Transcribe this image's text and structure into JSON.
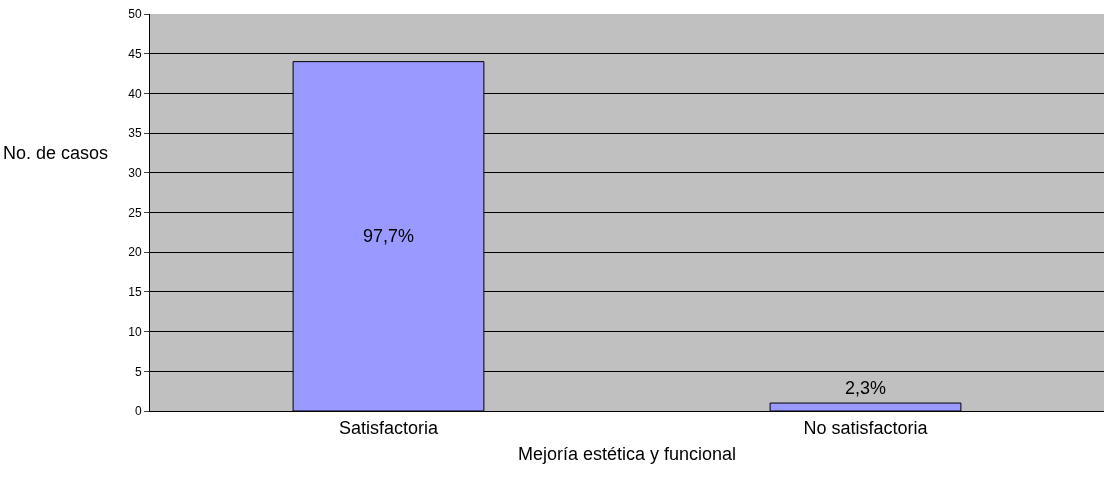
{
  "chart_data": {
    "type": "bar",
    "xlabel": "Mejoría estética y funcional",
    "ylabel": "No. de casos",
    "categories": [
      "Satisfactoria",
      "No satisfactoria"
    ],
    "series": [
      {
        "color": "#9999ff",
        "values": [
          44,
          1
        ]
      }
    ],
    "annotations": [
      "97,7%",
      "2,3%"
    ],
    "ylim": [
      0,
      50
    ],
    "yticks": [
      0,
      5,
      10,
      15,
      20,
      25,
      30,
      35,
      40,
      45,
      50
    ],
    "grid": "y",
    "legend": false
  }
}
